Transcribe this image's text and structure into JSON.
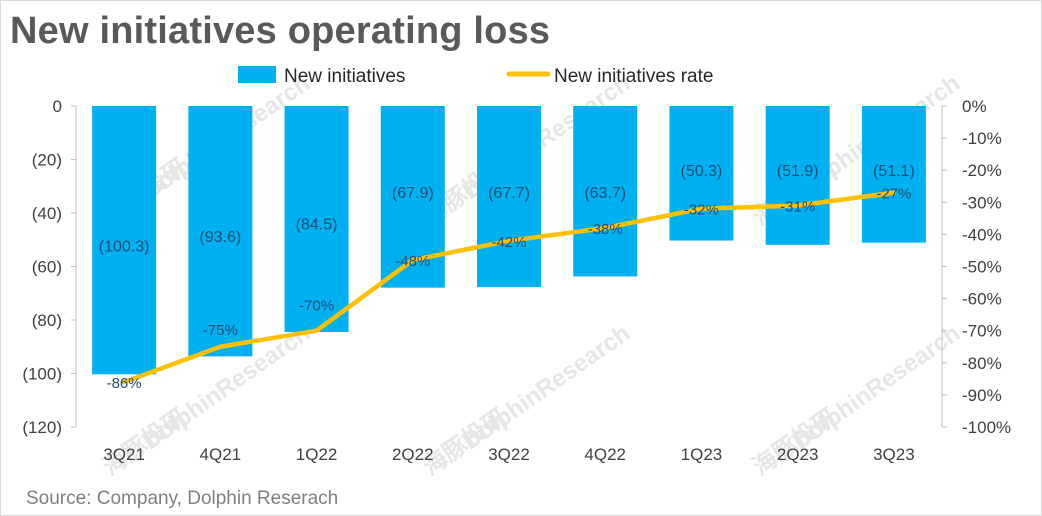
{
  "title": "New initiatives operating loss",
  "source": "Source: Company,  Dolphin Reserach",
  "watermark": {
    "text": "DolphinResearch",
    "logo_text": "海豚投研"
  },
  "colors": {
    "bar": "#00b0f0",
    "line": "#ffc000",
    "axis": "#404040",
    "label": "#1f4e79"
  },
  "chart_data": {
    "type": "bar",
    "categories": [
      "3Q21",
      "4Q21",
      "1Q22",
      "2Q22",
      "3Q22",
      "4Q22",
      "1Q23",
      "2Q23",
      "3Q23"
    ],
    "series": [
      {
        "name": "New initiatives",
        "type": "bar",
        "axis": "left",
        "values": [
          -100.3,
          -93.6,
          -84.5,
          -67.9,
          -67.7,
          -63.7,
          -50.3,
          -51.9,
          -51.1
        ],
        "labels": [
          "(100.3)",
          "(93.6)",
          "(84.5)",
          "(67.9)",
          "(67.7)",
          "(63.7)",
          "(50.3)",
          "(51.9)",
          "(51.1)"
        ]
      },
      {
        "name": "New initiatives rate",
        "type": "line",
        "axis": "right",
        "values": [
          -86,
          -75,
          -70,
          -48,
          -42,
          -38,
          -32,
          -31,
          -27
        ],
        "labels": [
          "-86%",
          "-75%",
          "-70%",
          "-48%",
          "-42%",
          "-38%",
          "-32%",
          "-31%",
          "-27%"
        ]
      }
    ],
    "left_axis": {
      "range": [
        -120,
        0
      ],
      "ticks": [
        0,
        -20,
        -40,
        -60,
        -80,
        -100,
        -120
      ],
      "tick_labels": [
        "0",
        "(20)",
        "(40)",
        "(60)",
        "(80)",
        "(100)",
        "(120)"
      ]
    },
    "right_axis": {
      "range": [
        -100,
        0
      ],
      "ticks": [
        0,
        -10,
        -20,
        -30,
        -40,
        -50,
        -60,
        -70,
        -80,
        -90,
        -100
      ],
      "tick_labels": [
        "0%",
        "-10%",
        "-20%",
        "-30%",
        "-40%",
        "-50%",
        "-60%",
        "-70%",
        "-80%",
        "-90%",
        "-100%"
      ]
    },
    "grid": false,
    "legend": "top-center"
  }
}
